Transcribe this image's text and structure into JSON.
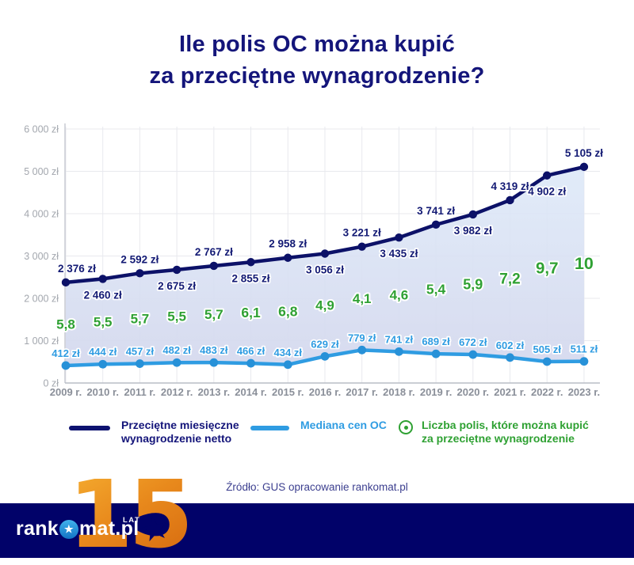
{
  "title": {
    "line1": "Ile polis OC można kupić",
    "line2": "za przeciętne  wynagrodzenie?"
  },
  "source": "Źródło: GUS opracowanie rankomat.pl",
  "legend": {
    "items": [
      {
        "label_line1": "Przeciętne miesięczne",
        "label_line2": "wynagrodzenie netto",
        "color": "#0d1270",
        "swatch": "line"
      },
      {
        "label_line1": "Mediana cen OC",
        "label_line2": "",
        "color": "#2f9ce2",
        "swatch": "line"
      },
      {
        "label_line1": "Liczba polis, które można kupić",
        "label_line2": "za przeciętne wynagrodzenie",
        "color": "#2fa133",
        "swatch": "circle-dot"
      }
    ]
  },
  "footer": {
    "brand_prefix": "rank",
    "brand_suffix": "mat.pl",
    "brand_star": "★",
    "anniversary_number": "15",
    "anniversary_label": "LAT",
    "band_color": "#010269",
    "accent_orange": "#e8891c"
  },
  "chart_data": {
    "type": "line",
    "title": "Ile polis OC można kupić za przeciętne wynagrodzenie?",
    "categories": [
      "2009 r.",
      "2010 r.",
      "2011 r.",
      "2012 r.",
      "2013 r.",
      "2014 r.",
      "2015 r.",
      "2016 r.",
      "2017 r.",
      "2018 r.",
      "2019 r.",
      "2020 r.",
      "2021 r.",
      "2022 r.",
      "2023 r."
    ],
    "series": [
      {
        "name": "Przeciętne miesięczne wynagrodzenie netto",
        "color": "#0d1270",
        "values": [
          2376,
          2460,
          2592,
          2675,
          2767,
          2855,
          2958,
          3056,
          3221,
          3435,
          3741,
          3982,
          4319,
          4902,
          5105
        ],
        "labels": [
          "2 376 zł",
          "2 460 zł",
          "2 592 zł",
          "2 675 zł",
          "2 767 zł",
          "2 855 zł",
          "2 958 zł",
          "3 056 zł",
          "3 221 zł",
          "3 435 zł",
          "3 741 zł",
          "3 982 zł",
          "4 319 zł",
          "4 902 zł",
          "5 105 zł"
        ]
      },
      {
        "name": "Mediana cen OC",
        "color": "#2f9ce2",
        "values": [
          412,
          444,
          457,
          482,
          483,
          466,
          434,
          629,
          779,
          741,
          689,
          672,
          602,
          505,
          511
        ],
        "labels": [
          "412 zł",
          "444 zł",
          "457 zł",
          "482 zł",
          "483 zł",
          "466 zł",
          "434 zł",
          "629 zł",
          "779 zł",
          "741 zł",
          "689 zł",
          "672 zł",
          "602 zł",
          "505 zł",
          "511 zł"
        ]
      },
      {
        "name": "Liczba polis, które można kupić za przeciętne wynagrodzenie",
        "color": "#2fa133",
        "values": [
          5.8,
          5.5,
          5.7,
          5.5,
          5.7,
          6.1,
          6.8,
          4.9,
          4.1,
          4.6,
          5.4,
          5.9,
          7.2,
          9.7,
          10
        ],
        "labels": [
          "5,8",
          "5,5",
          "5,7",
          "5,5",
          "5,7",
          "6,1",
          "6,8",
          "4,9",
          "4,1",
          "4,6",
          "5,4",
          "5,9",
          "7,2",
          "9,7",
          "10"
        ]
      }
    ],
    "y_ticks": [
      "0 zł",
      "1 000 zł",
      "2 000 zł",
      "3 000 zł",
      "4 000 zł",
      "5 000 zł",
      "6 000 zł"
    ],
    "ylim": [
      0,
      6000
    ],
    "grid": true,
    "legend_position": "bottom",
    "area_fill_between": [
      0,
      1
    ]
  }
}
